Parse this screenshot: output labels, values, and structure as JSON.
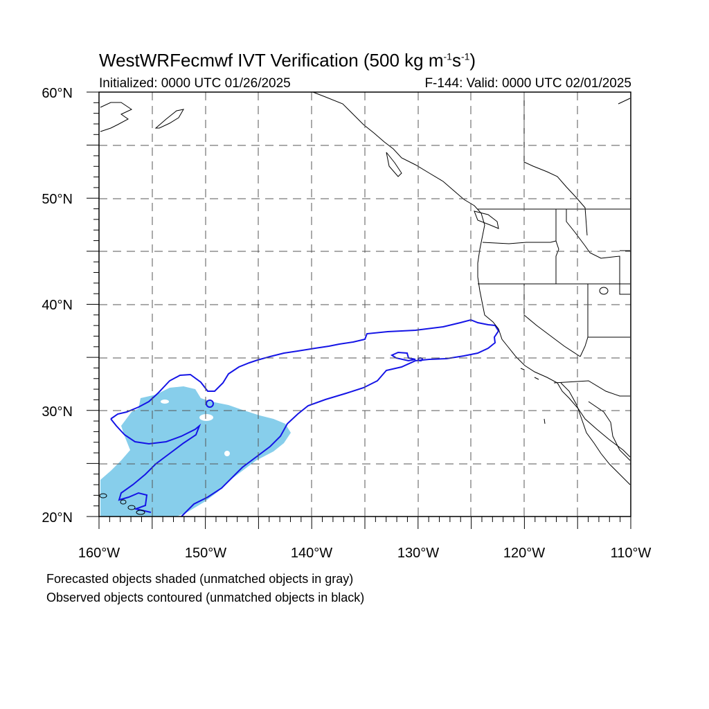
{
  "header": {
    "title_main": "WestWRFecmwf IVT Verification (500 kg m",
    "title_exp1": "-1",
    "title_mid": "s",
    "title_exp2": "-1",
    "title_end": ")",
    "initialized": "Initialized: 0000 UTC 01/26/2025",
    "valid": "F-144: Valid: 0000 UTC 02/01/2025"
  },
  "map": {
    "lon_range": [
      -160,
      -110
    ],
    "lat_range": [
      20,
      60
    ],
    "lat_labels": [
      {
        "value": 60,
        "text": "60°N"
      },
      {
        "value": 50,
        "text": "50°N"
      },
      {
        "value": 40,
        "text": "40°N"
      },
      {
        "value": 30,
        "text": "30°N"
      },
      {
        "value": 20,
        "text": "20°N"
      }
    ],
    "lon_labels": [
      {
        "value": -160,
        "text": "160°W"
      },
      {
        "value": -150,
        "text": "150°W"
      },
      {
        "value": -140,
        "text": "140°W"
      },
      {
        "value": -130,
        "text": "130°W"
      },
      {
        "value": -120,
        "text": "120°W"
      },
      {
        "value": -110,
        "text": "110°W"
      }
    ],
    "forecast_fill_color": "#87ceeb",
    "observed_contour_color": "#1414e6",
    "coast_color": "#000000"
  },
  "legend": {
    "line1": "Forecasted objects shaded (unmatched objects in gray)",
    "line2": "Observed objects contoured (unmatched objects in black)"
  }
}
